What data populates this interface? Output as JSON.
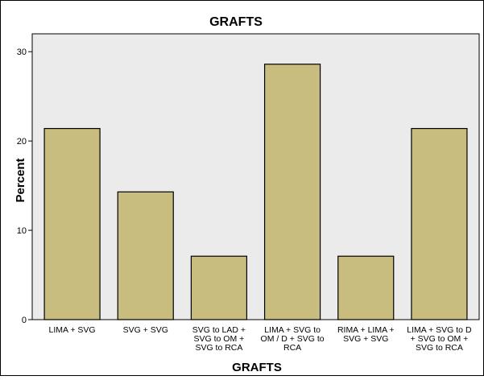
{
  "chart_data": {
    "type": "bar",
    "title": "GRAFTS",
    "xlabel": "GRAFTS",
    "ylabel": "Percent",
    "ylim": [
      0,
      32
    ],
    "yticks": [
      0,
      10,
      20,
      30
    ],
    "grid": false,
    "categories": [
      [
        "LIMA + SVG"
      ],
      [
        "SVG + SVG"
      ],
      [
        "SVG to LAD +",
        "SVG to OM +",
        "SVG to RCA"
      ],
      [
        "LIMA + SVG to",
        "OM / D + SVG to",
        "RCA"
      ],
      [
        "RIMA + LIMA +",
        "SVG + SVG"
      ],
      [
        "LIMA + SVG to D",
        "+ SVG to OM +",
        "SVG to RCA"
      ]
    ],
    "values": [
      21.4,
      14.3,
      7.1,
      28.6,
      7.1,
      21.4
    ]
  },
  "colors": {
    "bar_fill": "#c8bc7f",
    "bar_stroke": "#000000",
    "plot_background": "#ebebeb",
    "page_background": "#ffffff"
  }
}
